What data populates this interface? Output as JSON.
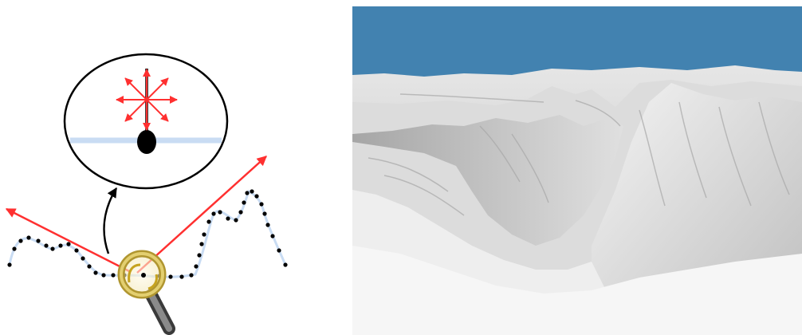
{
  "diagram": {
    "description_icons": [
      "magnifier-icon",
      "light-ray-arrow-icon",
      "sample-point-dot-icon"
    ],
    "colors": {
      "curve": "#c9dcf3",
      "points": "#000000",
      "ray": "#ff3030",
      "zoom_arrow": "#000000",
      "magnifier_rim": "#c9b24a",
      "magnifier_handle": "#555555"
    }
  },
  "render": {
    "colors": {
      "sky": "#4282b0",
      "terrain_light": "#f2f2f2",
      "terrain_mid": "#c4c4c4",
      "terrain_dark": "#8e8e8e"
    }
  }
}
